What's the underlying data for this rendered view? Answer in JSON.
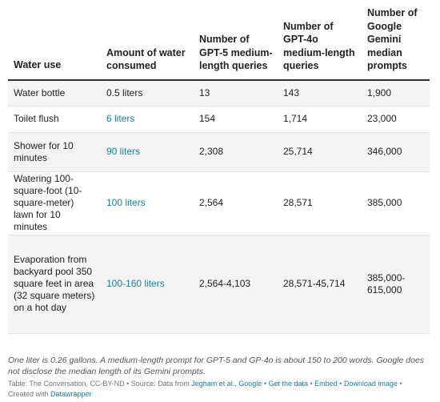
{
  "table": {
    "headers": [
      "Water use",
      "Amount of water consumed",
      "Number of GPT-5 medium-length queries",
      "Number of GPT-4o medium-length queries",
      "Number of Google Gemini median prompts"
    ],
    "rows": [
      {
        "use": "Water bottle",
        "amount": "0.5 liters",
        "gpt5": "13",
        "gpt4o": "143",
        "gemini": "1,900"
      },
      {
        "use": "Toilet flush",
        "amount": "6 liters",
        "gpt5": "154",
        "gpt4o": "1,714",
        "gemini": "23,000"
      },
      {
        "use": "Shower for 10 minutes",
        "amount": "90 liters",
        "gpt5": "2,308",
        "gpt4o": "25,714",
        "gemini": "346,000"
      },
      {
        "use": "Watering 100-square-foot (10-square-meter) lawn for 10 minutes",
        "amount": "100 liters",
        "gpt5": "2,564",
        "gpt4o": "28,571",
        "gemini": "385,000"
      },
      {
        "use": "Evaporation from backyard pool 350 square feet in area (32 square meters) on a hot day",
        "amount": "100-160 liters",
        "gpt5": "2,564-4,103",
        "gpt4o": "28,571-45,714",
        "gemini": "385,000-615,000"
      }
    ]
  },
  "note": "One liter is 0.26 gallons. A medium-length prompt for GPT-5 and GP-4o is about 150 to 200 words. Google does not disclose the median length of its Gemini prompts.",
  "footer": {
    "prefix": "Table: The Conversation, CC-BY-ND • Source: Data from ",
    "source_link": "Jegham et al., Google",
    "sep1": " • ",
    "get_data": "Get the data",
    "sep2": " • ",
    "embed": "Embed",
    "sep3": " • ",
    "download": "Download image",
    "sep4": " • ",
    "created_with": "Created with ",
    "datawrapper": "Datawrapper"
  },
  "colors": {
    "link": "#1d81a2",
    "shaded_row": "#f4f4f4",
    "header_rule": "#333333"
  }
}
